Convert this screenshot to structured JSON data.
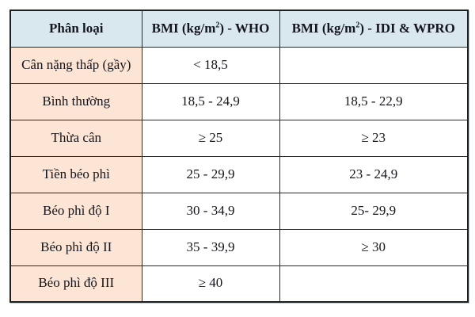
{
  "table": {
    "title_semantic": "BMI classification table (Vietnamese)",
    "headers": {
      "category": "Phân loại",
      "who": "BMI (kg/m²) - WHO",
      "idi_wpro": "BMI (kg/m²) - IDI & WPRO"
    },
    "rows": [
      {
        "label": "Cân nặng thấp (gầy)",
        "who": "< 18,5",
        "idi_wpro": ""
      },
      {
        "label": "Bình thường",
        "who": "18,5 - 24,9",
        "idi_wpro": "18,5 - 22,9"
      },
      {
        "label": "Thừa cân",
        "who": "≥ 25",
        "idi_wpro": "≥ 23"
      },
      {
        "label": "Tiền béo phì",
        "who": "25 - 29,9",
        "idi_wpro": "23 - 24,9"
      },
      {
        "label": "Béo phì độ I",
        "who": "30 - 34,9",
        "idi_wpro": "25- 29,9"
      },
      {
        "label": "Béo phì độ II",
        "who": "35 - 39,9",
        "idi_wpro": "≥ 30"
      },
      {
        "label": "Béo phì độ III",
        "who": "≥ 40",
        "idi_wpro": ""
      }
    ],
    "colors": {
      "header_bg": "#d9e8ef",
      "label_column_bg": "#fce5d5",
      "value_cell_bg": "#ffffff",
      "border": "#2a2a2a",
      "text": "#15151d"
    }
  }
}
